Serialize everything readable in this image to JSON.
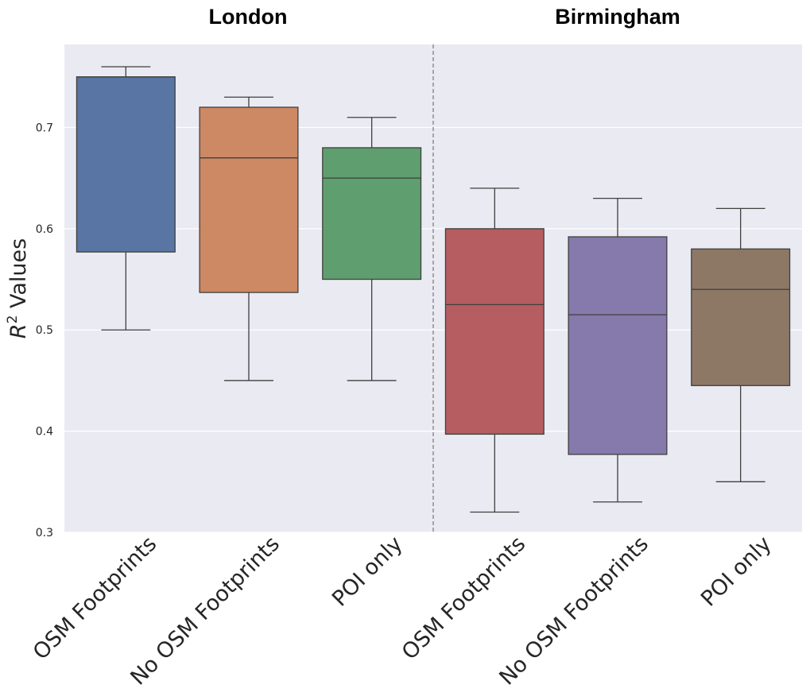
{
  "chart_data": {
    "type": "box",
    "group_titles": [
      "London",
      "Birmingham"
    ],
    "ylabel": "R² Values",
    "ylabel_base": "R",
    "ylabel_sup": "2",
    "ylabel_rest": " Values",
    "ylim": [
      0.3,
      0.782
    ],
    "yticks": [
      "0.3",
      "0.4",
      "0.5",
      "0.6",
      "0.7"
    ],
    "grid": true,
    "group_divider": "dashed vertical line between groups",
    "boxes": [
      {
        "group": "London",
        "label": "OSM Footprints",
        "color": "#5875a4",
        "whisker_low": 0.5,
        "q1": 0.577,
        "median": 0.75,
        "q3": 0.75,
        "whisker_high": 0.76
      },
      {
        "group": "London",
        "label": "No OSM Footprints",
        "color": "#cc8963",
        "whisker_low": 0.45,
        "q1": 0.537,
        "median": 0.67,
        "q3": 0.72,
        "whisker_high": 0.73
      },
      {
        "group": "London",
        "label": "POI only",
        "color": "#5f9e6e",
        "whisker_low": 0.45,
        "q1": 0.55,
        "median": 0.65,
        "q3": 0.68,
        "whisker_high": 0.71
      },
      {
        "group": "Birmingham",
        "label": "OSM Footprints",
        "color": "#b55d60",
        "whisker_low": 0.32,
        "q1": 0.397,
        "median": 0.525,
        "q3": 0.6,
        "whisker_high": 0.64
      },
      {
        "group": "Birmingham",
        "label": "No OSM Footprints",
        "color": "#857aab",
        "whisker_low": 0.33,
        "q1": 0.377,
        "median": 0.515,
        "q3": 0.592,
        "whisker_high": 0.63
      },
      {
        "group": "Birmingham",
        "label": "POI only",
        "color": "#8d7866",
        "whisker_low": 0.35,
        "q1": 0.445,
        "median": 0.54,
        "q3": 0.58,
        "whisker_high": 0.62
      }
    ],
    "colors": {
      "background": "#eaeaf2",
      "grid": "#ffffff",
      "box_edge": "#3f3f3f",
      "divider": "#808080"
    }
  }
}
